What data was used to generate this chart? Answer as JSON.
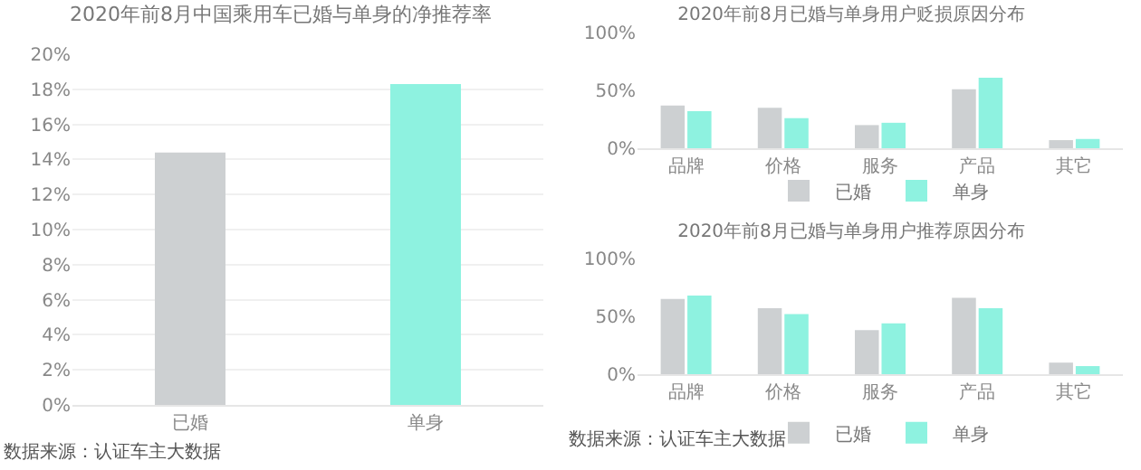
{
  "chart_data": [
    {
      "type": "bar",
      "title": "2020年前8月中国乘用车已婚与单身的净推荐率",
      "categories": [
        "已婚",
        "单身"
      ],
      "values": [
        14.4,
        18.3
      ],
      "colors": [
        "#cdd0d2",
        "#8ef2e0"
      ],
      "ylim": [
        0,
        20
      ],
      "yticks": [
        {
          "value": 0,
          "label": "0%"
        },
        {
          "value": 2,
          "label": "2%"
        },
        {
          "value": 4,
          "label": "4%"
        },
        {
          "value": 6,
          "label": "6%"
        },
        {
          "value": 8,
          "label": "8%"
        },
        {
          "value": 10,
          "label": "10%"
        },
        {
          "value": 12,
          "label": "12%"
        },
        {
          "value": 14,
          "label": "14%"
        },
        {
          "value": 16,
          "label": "16%"
        },
        {
          "value": 18,
          "label": "18%"
        },
        {
          "value": 20,
          "label": "20%"
        }
      ],
      "grid": "y",
      "legend": false,
      "annotations": [
        "数据来源：认证车主大数据"
      ]
    },
    {
      "type": "bar",
      "title": "2020年前8月已婚与单身用户贬损原因分布",
      "categories": [
        "品牌",
        "价格",
        "服务",
        "产品",
        "其它"
      ],
      "series": [
        {
          "name": "已婚",
          "color": "#cdd0d2",
          "values": [
            37,
            35,
            20,
            51,
            7
          ]
        },
        {
          "name": "单身",
          "color": "#8ef2e0",
          "values": [
            32,
            26,
            22,
            61,
            8
          ]
        }
      ],
      "ylim": [
        0,
        100
      ],
      "yticks": [
        {
          "value": 0,
          "label": "0%"
        },
        {
          "value": 50,
          "label": "50%"
        },
        {
          "value": 100,
          "label": "100%"
        }
      ],
      "grid": false,
      "legend": "bottom"
    },
    {
      "type": "bar",
      "title": "2020年前8月已婚与单身用户推荐原因分布",
      "categories": [
        "品牌",
        "价格",
        "服务",
        "产品",
        "其它"
      ],
      "series": [
        {
          "name": "已婚",
          "color": "#cdd0d2",
          "values": [
            65,
            57,
            38,
            66,
            10
          ]
        },
        {
          "name": "单身",
          "color": "#8ef2e0",
          "values": [
            68,
            52,
            44,
            57,
            7
          ]
        }
      ],
      "ylim": [
        0,
        100
      ],
      "yticks": [
        {
          "value": 0,
          "label": "0%"
        },
        {
          "value": 50,
          "label": "50%"
        },
        {
          "value": 100,
          "label": "100%"
        }
      ],
      "grid": false,
      "legend": "bottom",
      "annotations": [
        "数据来源：认证车主大数据"
      ]
    }
  ]
}
